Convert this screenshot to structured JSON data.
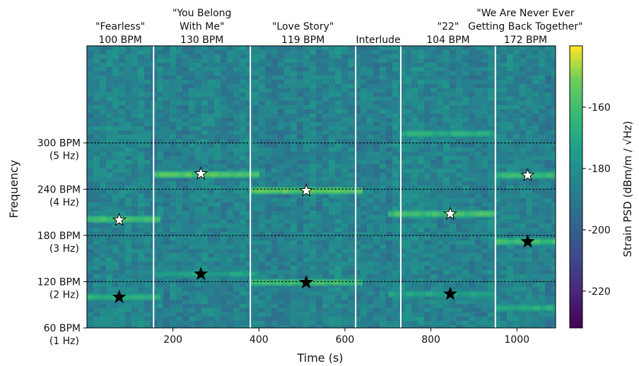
{
  "chart_data": {
    "type": "heatmap",
    "title": "",
    "xlabel": "Time (s)",
    "ylabel": "Frequency",
    "xlim": [
      0,
      1090
    ],
    "ylim": [
      60,
      426
    ],
    "x_ticks": [
      {
        "value": 200,
        "label": "200"
      },
      {
        "value": 400,
        "label": "400"
      },
      {
        "value": 600,
        "label": "600"
      },
      {
        "value": 800,
        "label": "800"
      },
      {
        "value": 1000,
        "label": "1000"
      }
    ],
    "y_ticks": [
      {
        "value": 60,
        "line1": "60 BPM",
        "line2": "(1 Hz)"
      },
      {
        "value": 120,
        "line1": "120 BPM",
        "line2": "(2 Hz)"
      },
      {
        "value": 180,
        "line1": "180 BPM",
        "line2": "(3 Hz)"
      },
      {
        "value": 240,
        "line1": "240 BPM",
        "line2": "(4 Hz)"
      },
      {
        "value": 300,
        "line1": "300 BPM",
        "line2": "(5 Hz)"
      }
    ],
    "reference_lines_bpm": [
      120,
      180,
      240,
      300
    ],
    "segments": [
      {
        "name": "\"Fearless\"",
        "bpm_label": "100 BPM",
        "start": 0,
        "end": 155,
        "label_lines": [
          "\"Fearless\"",
          "100 BPM"
        ]
      },
      {
        "name": "\"You Belong With Me\"",
        "bpm_label": "130 BPM",
        "start": 155,
        "end": 380,
        "label_lines": [
          "\"You Belong",
          "With Me\"",
          "130 BPM"
        ]
      },
      {
        "name": "\"Love Story\"",
        "bpm_label": "119 BPM",
        "start": 380,
        "end": 625,
        "label_lines": [
          "\"Love Story\"",
          "119 BPM"
        ]
      },
      {
        "name": "Interlude",
        "bpm_label": "",
        "start": 625,
        "end": 730,
        "label_lines": [
          "Interlude"
        ]
      },
      {
        "name": "\"22\"",
        "bpm_label": "104 BPM",
        "start": 730,
        "end": 950,
        "label_lines": [
          "\"22\"",
          "104 BPM"
        ]
      },
      {
        "name": "\"We Are Never Ever Getting Back Together\"",
        "bpm_label": "172 BPM",
        "start": 950,
        "end": 1090,
        "label_lines": [
          "\"We Are Never Ever",
          "Getting Back Together\"",
          "172 BPM"
        ]
      }
    ],
    "bands": [
      {
        "t0": 0,
        "t1": 170,
        "bpm": 100,
        "power": -168
      },
      {
        "t0": 0,
        "t1": 170,
        "bpm": 201,
        "power": -160
      },
      {
        "t0": 155,
        "t1": 400,
        "bpm": 130,
        "power": -172
      },
      {
        "t0": 155,
        "t1": 400,
        "bpm": 259,
        "power": -158
      },
      {
        "t0": 380,
        "t1": 640,
        "bpm": 119,
        "power": -160
      },
      {
        "t0": 380,
        "t1": 640,
        "bpm": 238,
        "power": -156
      },
      {
        "t0": 700,
        "t1": 950,
        "bpm": 104,
        "power": -172
      },
      {
        "t0": 700,
        "t1": 950,
        "bpm": 208,
        "power": -160
      },
      {
        "t0": 730,
        "t1": 950,
        "bpm": 312,
        "power": -168
      },
      {
        "t0": 950,
        "t1": 1090,
        "bpm": 86,
        "power": -168
      },
      {
        "t0": 950,
        "t1": 1090,
        "bpm": 172,
        "power": -162
      },
      {
        "t0": 950,
        "t1": 1090,
        "bpm": 258,
        "power": -164
      }
    ],
    "background_power": -186,
    "markers": [
      {
        "t": 75,
        "bpm": 100,
        "style": "black"
      },
      {
        "t": 75,
        "bpm": 200,
        "style": "white"
      },
      {
        "t": 265,
        "bpm": 130,
        "style": "black"
      },
      {
        "t": 265,
        "bpm": 260,
        "style": "white"
      },
      {
        "t": 510,
        "bpm": 119,
        "style": "black"
      },
      {
        "t": 510,
        "bpm": 238,
        "style": "white"
      },
      {
        "t": 845,
        "bpm": 104,
        "style": "black"
      },
      {
        "t": 845,
        "bpm": 208,
        "style": "white"
      },
      {
        "t": 1025,
        "bpm": 172,
        "style": "black"
      },
      {
        "t": 1025,
        "bpm": 258,
        "style": "white"
      }
    ],
    "colorbar": {
      "label": "Strain PSD (dBm/m / √Hz)",
      "min": -232,
      "max": -140,
      "ticks": [
        -160,
        -180,
        -200,
        -220
      ],
      "colormap": "viridis"
    },
    "grid": false,
    "legend": "none"
  }
}
